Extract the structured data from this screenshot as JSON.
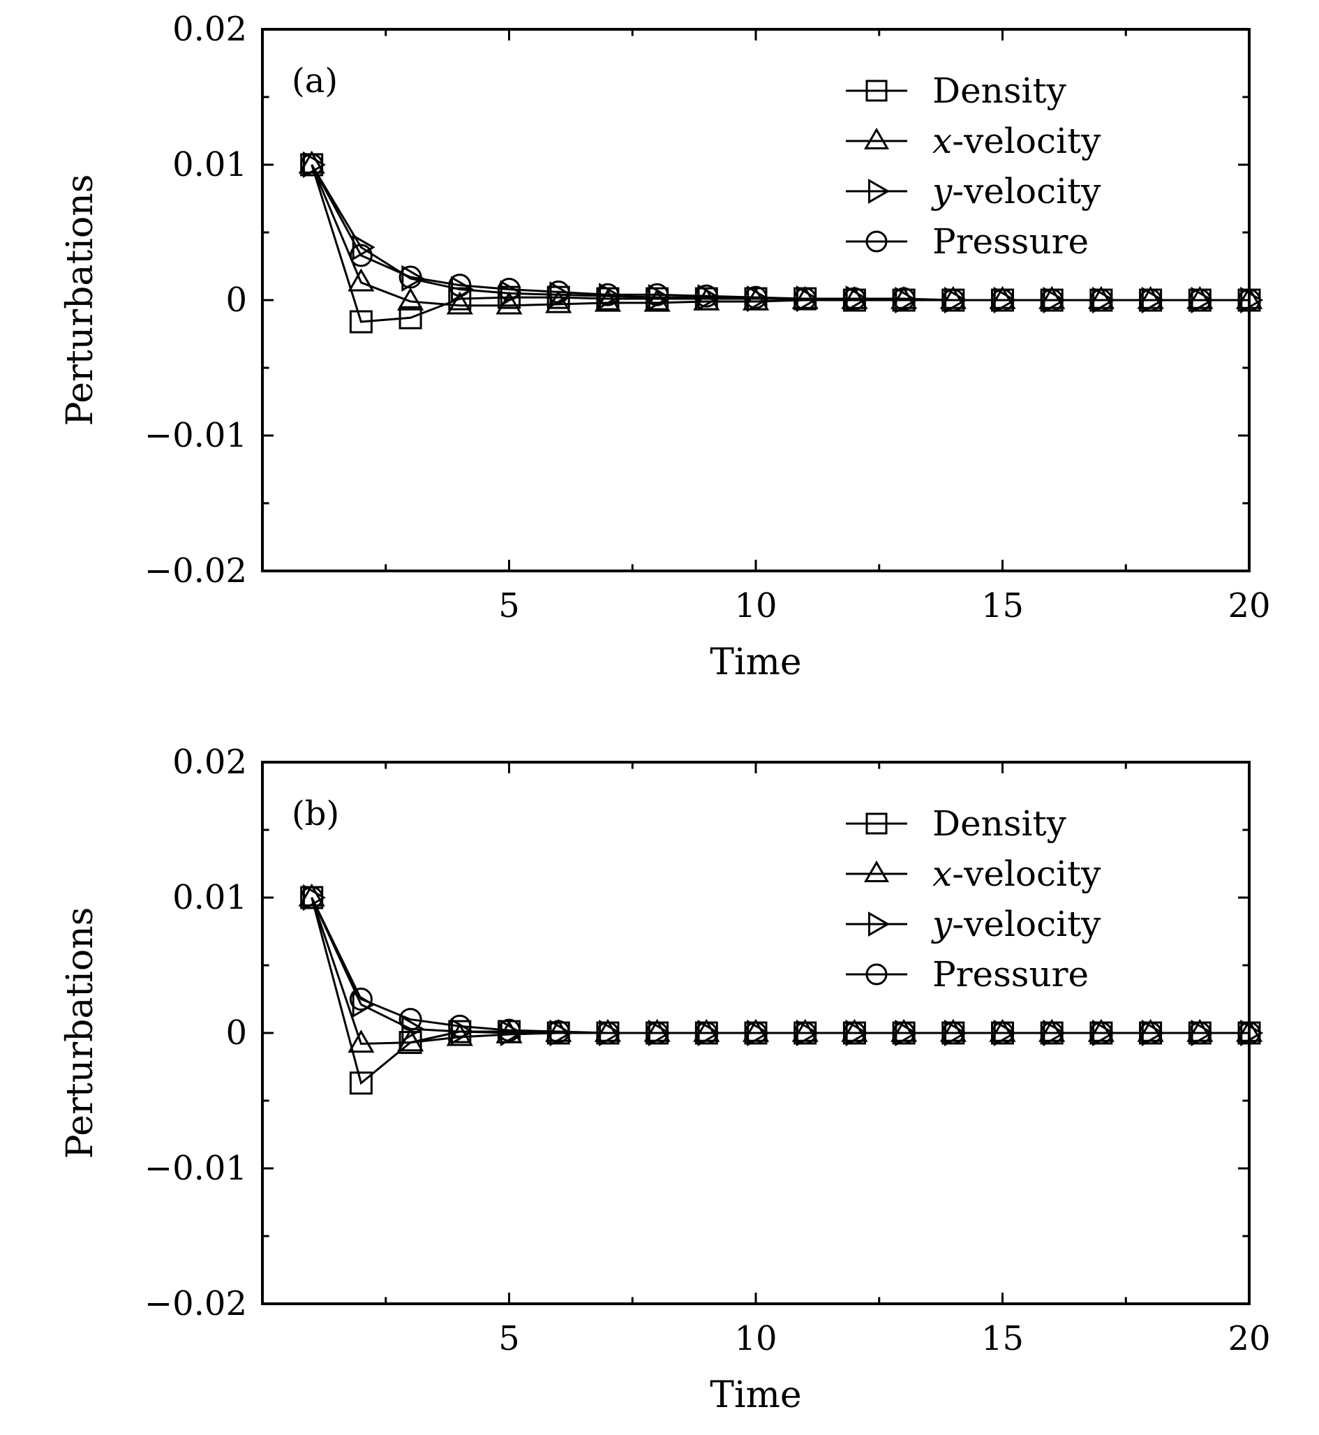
{
  "chart_data": [
    {
      "type": "line",
      "panel_label": "(a)",
      "xlabel": "Time",
      "ylabel": "Perturbations",
      "xlim": [
        0,
        20
      ],
      "ylim": [
        -0.02,
        0.02
      ],
      "x_ticks": [
        5,
        10,
        15,
        20
      ],
      "x_tick_labels": [
        "5",
        "10",
        "15",
        "20"
      ],
      "y_ticks": [
        0.02,
        0.01,
        0,
        -0.01,
        -0.02
      ],
      "y_tick_labels": [
        "0.02",
        "0.01",
        "0",
        "−0.01",
        "−0.02"
      ],
      "legend_position": "top-right",
      "series": [
        {
          "name": "Density",
          "marker": "square",
          "x": [
            1,
            2,
            3,
            4,
            5,
            6,
            7,
            8,
            9,
            10,
            11,
            12,
            13,
            14,
            15,
            16,
            17,
            18,
            19,
            20
          ],
          "values": [
            0.01,
            -0.0016,
            -0.0013,
            0.0001,
            0.0002,
            0.0002,
            0.0001,
            0.0001,
            0.0001,
            0.0001,
            0.0001,
            0,
            0,
            0,
            0,
            0,
            0,
            0,
            0,
            0
          ]
        },
        {
          "name": "x-velocity",
          "legend_prefix": "x",
          "legend_suffix": "-velocity",
          "marker": "triangle-up",
          "x": [
            1,
            2,
            3,
            4,
            5,
            6,
            7,
            8,
            9,
            10,
            11,
            12,
            13,
            14,
            15,
            16,
            17,
            18,
            19,
            20
          ],
          "values": [
            0.01,
            0.0013,
            -0.0001,
            -0.0004,
            -0.0004,
            -0.0003,
            -0.0002,
            -0.0002,
            -0.0001,
            -0.0001,
            0,
            0,
            0,
            0,
            0,
            0,
            0,
            0,
            0,
            0
          ]
        },
        {
          "name": "y-velocity",
          "legend_prefix": "y",
          "legend_suffix": "-velocity",
          "marker": "triangle-right",
          "x": [
            1,
            2,
            3,
            4,
            5,
            6,
            7,
            8,
            9,
            10,
            11,
            12,
            13,
            14,
            15,
            16,
            17,
            18,
            19,
            20
          ],
          "values": [
            0.01,
            0.0039,
            0.0016,
            0.0008,
            0.0005,
            0.0004,
            0.0003,
            0.0002,
            0.0002,
            0.0001,
            0.0001,
            0.0001,
            0,
            0,
            0,
            0,
            0,
            0,
            0,
            0
          ]
        },
        {
          "name": "Pressure",
          "marker": "circle",
          "x": [
            1,
            2,
            3,
            4,
            5,
            6,
            7,
            8,
            9,
            10,
            11,
            12,
            13,
            14,
            15,
            16,
            17,
            18,
            19,
            20
          ],
          "values": [
            0.01,
            0.0033,
            0.0017,
            0.0011,
            0.0008,
            0.0006,
            0.0004,
            0.0004,
            0.0003,
            0.0002,
            0.0001,
            0.0001,
            0.0001,
            0,
            0,
            0,
            0,
            0,
            0,
            0
          ]
        }
      ]
    },
    {
      "type": "line",
      "panel_label": "(b)",
      "xlabel": "Time",
      "ylabel": "Perturbations",
      "xlim": [
        0,
        20
      ],
      "ylim": [
        -0.02,
        0.02
      ],
      "x_ticks": [
        5,
        10,
        15,
        20
      ],
      "x_tick_labels": [
        "5",
        "10",
        "15",
        "20"
      ],
      "y_ticks": [
        0.02,
        0.01,
        0,
        -0.01,
        -0.02
      ],
      "y_tick_labels": [
        "0.02",
        "0.01",
        "0",
        "−0.01",
        "−0.02"
      ],
      "legend_position": "top-right",
      "series": [
        {
          "name": "Density",
          "marker": "square",
          "x": [
            1,
            2,
            3,
            4,
            5,
            6,
            7,
            8,
            9,
            10,
            11,
            12,
            13,
            14,
            15,
            16,
            17,
            18,
            19,
            20
          ],
          "values": [
            0.01,
            -0.0037,
            -0.0007,
            0.0001,
            0.0001,
            0,
            0,
            0,
            0,
            0,
            0,
            0,
            0,
            0,
            0,
            0,
            0,
            0,
            0,
            0
          ]
        },
        {
          "name": "x-velocity",
          "legend_prefix": "x",
          "legend_suffix": "-velocity",
          "marker": "triangle-up",
          "x": [
            1,
            2,
            3,
            4,
            5,
            6,
            7,
            8,
            9,
            10,
            11,
            12,
            13,
            14,
            15,
            16,
            17,
            18,
            19,
            20
          ],
          "values": [
            0.01,
            -0.0008,
            -0.0007,
            -0.0003,
            -0.0001,
            0,
            0,
            0,
            0,
            0,
            0,
            0,
            0,
            0,
            0,
            0,
            0,
            0,
            0,
            0
          ]
        },
        {
          "name": "y-velocity",
          "legend_prefix": "y",
          "legend_suffix": "-velocity",
          "marker": "triangle-right",
          "x": [
            1,
            2,
            3,
            4,
            5,
            6,
            7,
            8,
            9,
            10,
            11,
            12,
            13,
            14,
            15,
            16,
            17,
            18,
            19,
            20
          ],
          "values": [
            0.01,
            0.0021,
            0.0003,
            0.0001,
            0,
            0,
            0,
            0,
            0,
            0,
            0,
            0,
            0,
            0,
            0,
            0,
            0,
            0,
            0,
            0
          ]
        },
        {
          "name": "Pressure",
          "marker": "circle",
          "x": [
            1,
            2,
            3,
            4,
            5,
            6,
            7,
            8,
            9,
            10,
            11,
            12,
            13,
            14,
            15,
            16,
            17,
            18,
            19,
            20
          ],
          "values": [
            0.01,
            0.0025,
            0.001,
            0.0005,
            0.0002,
            0.0001,
            0,
            0,
            0,
            0,
            0,
            0,
            0,
            0,
            0,
            0,
            0,
            0,
            0,
            0
          ]
        }
      ]
    }
  ]
}
